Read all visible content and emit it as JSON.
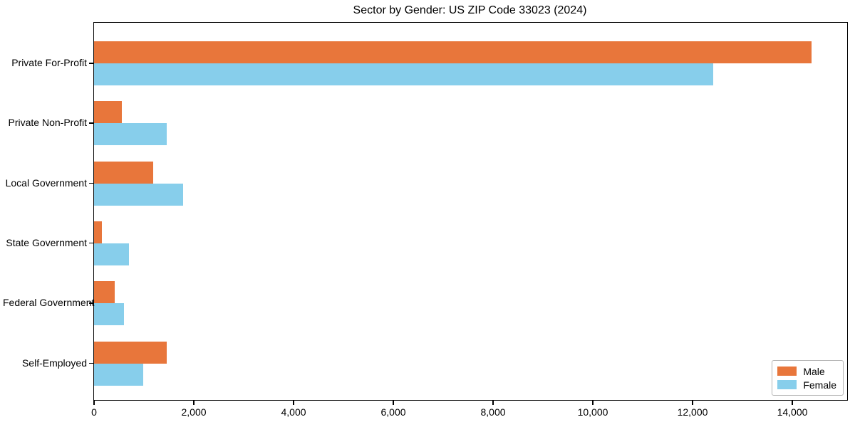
{
  "title": "Sector by Gender: US ZIP Code 33023 (2024)",
  "chart_data": {
    "type": "bar",
    "orientation": "horizontal",
    "title": "Sector by Gender: US ZIP Code 33023 (2024)",
    "categories": [
      "Private For-Profit",
      "Private Non-Profit",
      "Local Government",
      "State Government",
      "Federal Government",
      "Self-Employed"
    ],
    "series": [
      {
        "name": "Male",
        "color": "#e8763b",
        "values": [
          14380,
          550,
          1190,
          150,
          420,
          1460
        ]
      },
      {
        "name": "Female",
        "color": "#87ceeb",
        "values": [
          12410,
          1460,
          1790,
          700,
          600,
          980
        ]
      }
    ],
    "xlabel": "",
    "ylabel": "",
    "xlim": [
      0,
      15100
    ],
    "xticks": [
      0,
      2000,
      4000,
      6000,
      8000,
      10000,
      12000,
      14000
    ],
    "xtick_labels": [
      "0",
      "2,000",
      "4,000",
      "6,000",
      "8,000",
      "10,000",
      "12,000",
      "14,000"
    ],
    "grid": false,
    "legend_position": "lower right"
  },
  "legend": {
    "items": [
      {
        "label": "Male",
        "color": "#e8763b"
      },
      {
        "label": "Female",
        "color": "#87ceeb"
      }
    ]
  }
}
